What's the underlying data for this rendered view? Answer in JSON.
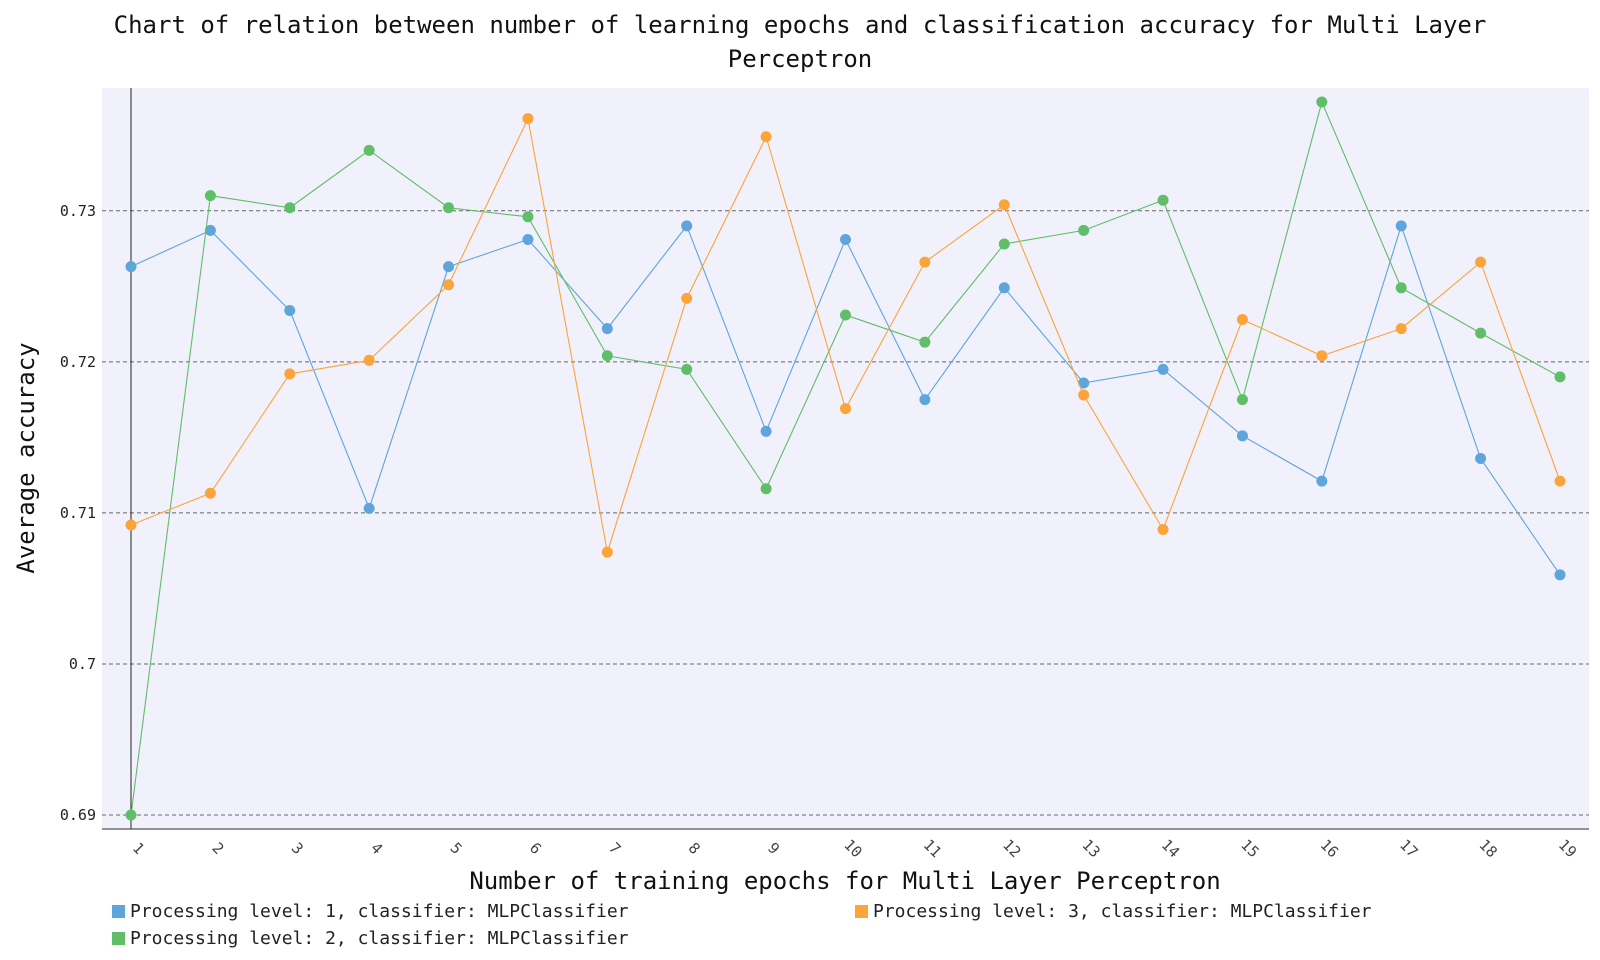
{
  "chart_data": {
    "type": "line",
    "title_line1": "Chart of relation between number of learning epochs and classification accuracy for Multi Layer",
    "title_line2": "Perceptron",
    "xlabel": "Number of training epochs for Multi Layer Perceptron",
    "ylabel": "Average accuracy",
    "x": [
      1,
      2,
      3,
      4,
      5,
      6,
      7,
      8,
      9,
      10,
      11,
      12,
      13,
      14,
      15,
      16,
      17,
      18,
      19
    ],
    "ylim": [
      0.689,
      0.738
    ],
    "yticks": [
      0.69,
      0.7,
      0.71,
      0.72,
      0.73
    ],
    "ytick_labels": [
      "0.69",
      "0.7",
      "0.71",
      "0.72",
      "0.73"
    ],
    "grid": "horizontal dashed",
    "legend_position": "bottom",
    "series": [
      {
        "name": "Processing level: 1, classifier: MLPClassifier",
        "color": "#5DA5DA",
        "values": [
          0.7263,
          0.7287,
          0.7234,
          0.7103,
          0.7263,
          0.7281,
          0.7222,
          0.729,
          0.7154,
          0.7281,
          0.7175,
          0.7249,
          0.7186,
          0.7195,
          0.7151,
          0.7121,
          0.729,
          0.7136,
          0.7059
        ]
      },
      {
        "name": "Processing level: 2, classifier: MLPClassifier",
        "color": "#60BD68",
        "values": [
          0.69,
          0.731,
          0.7302,
          0.734,
          0.7302,
          0.7296,
          0.7204,
          0.7195,
          0.7116,
          0.7231,
          0.7213,
          0.7278,
          0.7287,
          0.7307,
          0.7175,
          0.7372,
          0.7249,
          0.7219,
          0.719
        ]
      },
      {
        "name": "Processing level: 3, classifier: MLPClassifier",
        "color": "#FAA43A",
        "values": [
          0.7092,
          0.7113,
          0.7192,
          0.7201,
          0.7251,
          0.7361,
          0.7074,
          0.7242,
          0.7349,
          0.7169,
          0.7266,
          0.7304,
          0.7178,
          0.7089,
          0.7228,
          0.7204,
          0.7222,
          0.7266,
          0.7121
        ]
      }
    ]
  }
}
